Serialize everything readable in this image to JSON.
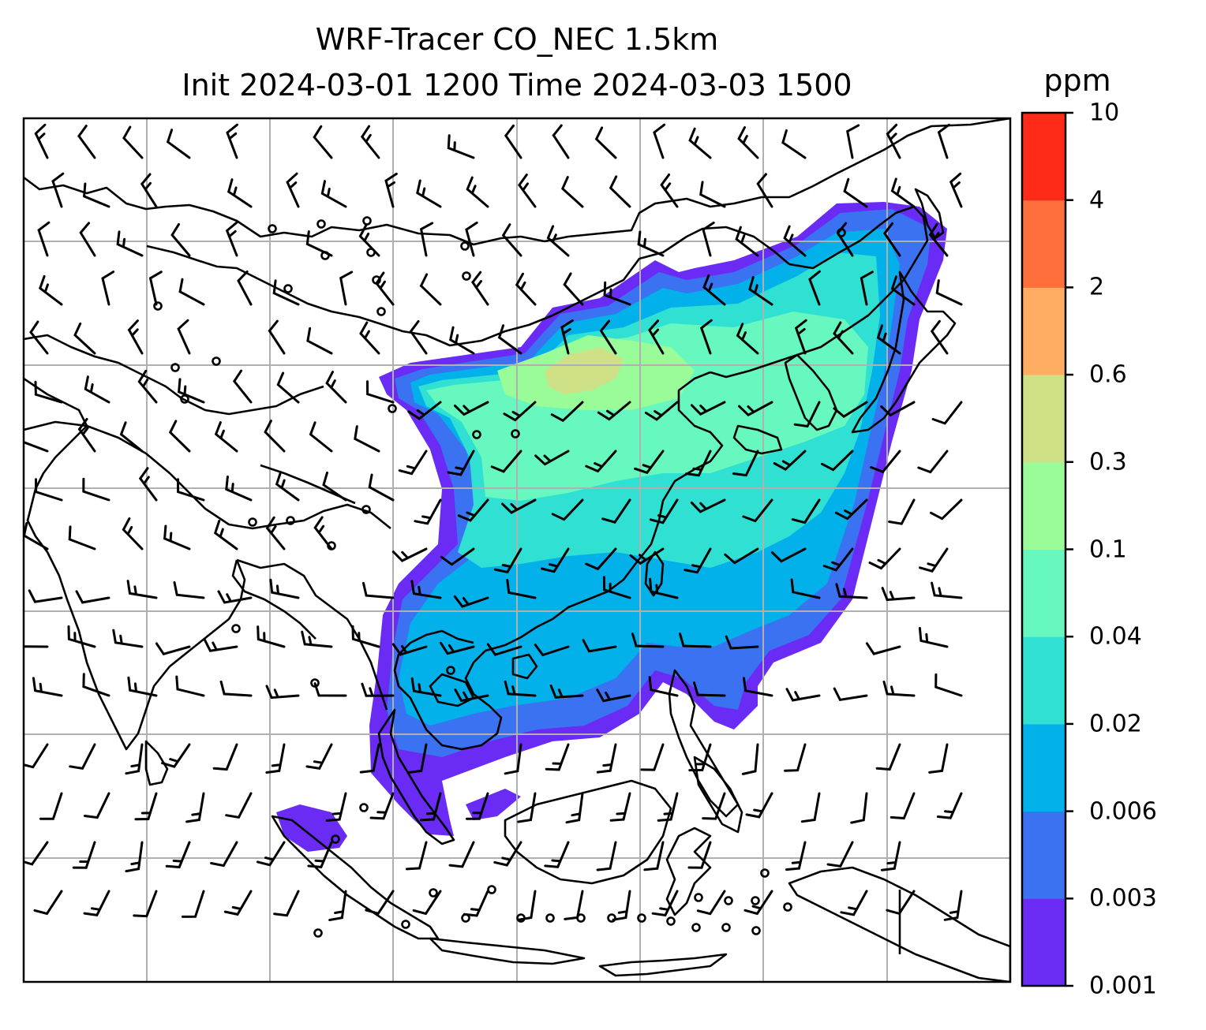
{
  "title_line1": "WRF-Tracer CO_NEC 1.5km",
  "title_line2": "Init 2024-03-01 1200 Time 2024-03-03 1500",
  "colorbar": {
    "unit": "ppm",
    "levels": [
      "0.001",
      "0.003",
      "0.006",
      "0.02",
      "0.04",
      "0.1",
      "0.3",
      "0.6",
      "2",
      "4",
      "10"
    ],
    "colors": [
      "#6a2cf5",
      "#3a72f2",
      "#03b1ea",
      "#2fe0d3",
      "#66f8be",
      "#9afc98",
      "#cfe187",
      "#ffad62",
      "#ff6f3c",
      "#ff2a17"
    ]
  },
  "colors": {
    "grid": "#b0b0b0",
    "coast": "#000000",
    "barb": "#000000"
  }
}
